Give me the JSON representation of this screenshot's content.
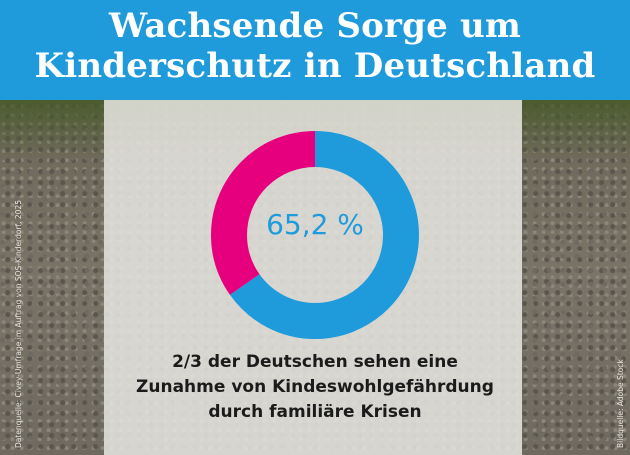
{
  "header": {
    "title_line1": "Wachsende Sorge um",
    "title_line2": "Kinderschutz in Deutschland",
    "background_color": "#1f9bdc"
  },
  "chart_data": {
    "type": "pie",
    "donut": true,
    "slices": [
      {
        "value": 65.2,
        "color": "#1f9bdc"
      },
      {
        "value": 34.8,
        "color": "#e6007e"
      }
    ],
    "center_label": "65,2 %"
  },
  "caption": {
    "line1": "2/3 der Deutschen sehen eine",
    "line2": "Zunahme von Kindeswohlgefährdung",
    "line3": "durch familiäre Krisen"
  },
  "credits": {
    "left": "Datenquelle: Civey-Umfrage im Auftrag von SOS-Kinderdorf, 2025",
    "right": "Bildquelle: Adobe Stock"
  }
}
